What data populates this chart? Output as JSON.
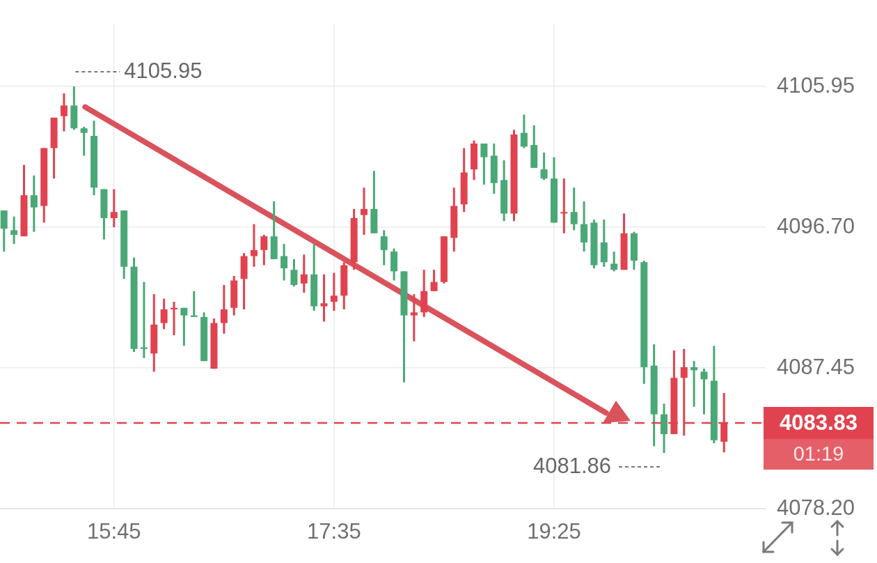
{
  "chart_data": {
    "type": "candlestick",
    "x": [
      14.8333,
      14.9167,
      15,
      15.0833,
      15.1667,
      15.25,
      15.3333,
      15.4167,
      15.5,
      15.5833,
      15.6667,
      15.75,
      15.8333,
      15.9167,
      16,
      16.0833,
      16.1667,
      16.25,
      16.3333,
      16.4167,
      16.5,
      16.5833,
      16.6667,
      16.75,
      16.8333,
      16.9167,
      17,
      17.0833,
      17.1667,
      17.25,
      17.3333,
      17.4167,
      17.5,
      17.5833,
      17.6667,
      17.75,
      17.8333,
      17.9167,
      18,
      18.0833,
      18.1667,
      18.25,
      18.3333,
      18.4167,
      18.5,
      18.5833,
      18.6667,
      18.75,
      18.8333,
      18.9167,
      19,
      19.0833,
      19.1667,
      19.25,
      19.3333,
      19.4167,
      19.5,
      19.5833,
      19.6667,
      19.75,
      19.8333,
      19.9167,
      20,
      20.0833,
      20.1667,
      20.25,
      20.3333,
      20.4167,
      20.5,
      20.5833,
      20.6667,
      20.75,
      20.8333
    ],
    "ohlc": [
      [
        4097.8,
        4097.8,
        4095.1,
        4096.6
      ],
      [
        4096.5,
        4097.4,
        4095.6,
        4096.2
      ],
      [
        4096.1,
        4100.8,
        4096.1,
        4098.8
      ],
      [
        4098.8,
        4100.1,
        4096.4,
        4098.0
      ],
      [
        4098.1,
        4101.9,
        4097.0,
        4101.9
      ],
      [
        4101.9,
        4103.9,
        4099.9,
        4103.9
      ],
      [
        4104.0,
        4105.5,
        4103.0,
        4104.7
      ],
      [
        4104.7,
        4105.95,
        4103.1,
        4103.2
      ],
      [
        4103.2,
        4103.3,
        4101.4,
        4102.9
      ],
      [
        4102.7,
        4103.7,
        4098.8,
        4099.3
      ],
      [
        4099.2,
        4099.2,
        4095.9,
        4097.3
      ],
      [
        4097.3,
        4099.2,
        4096.7,
        4097.7
      ],
      [
        4097.8,
        4097.8,
        4093.3,
        4094.1
      ],
      [
        4094.1,
        4094.7,
        4088.5,
        4088.7
      ],
      [
        4088.8,
        4093.1,
        4088.1,
        4088.7
      ],
      [
        4088.4,
        4092.3,
        4087.2,
        4090.3
      ],
      [
        4090.4,
        4092.0,
        4090.0,
        4091.3
      ],
      [
        4091.3,
        4091.8,
        4089.6,
        4091.4
      ],
      [
        4091.4,
        4091.4,
        4088.9,
        4090.9
      ],
      [
        4090.9,
        4092.5,
        4090.8,
        4090.8
      ],
      [
        4090.8,
        4091.1,
        4087.9,
        4087.9
      ],
      [
        4087.4,
        4090.7,
        4087.4,
        4090.4
      ],
      [
        4090.4,
        4092.9,
        4089.7,
        4091.3
      ],
      [
        4091.4,
        4093.5,
        4090.9,
        4093.2
      ],
      [
        4093.3,
        4095.0,
        4091.3,
        4094.8
      ],
      [
        4094.8,
        4096.9,
        4094.1,
        4095.2
      ],
      [
        4095.2,
        4096.2,
        4094.2,
        4096.1
      ],
      [
        4096.1,
        4098.4,
        4094.6,
        4094.6
      ],
      [
        4094.8,
        4095.6,
        4093.2,
        4094.0
      ],
      [
        4093.9,
        4094.6,
        4092.8,
        4092.9
      ],
      [
        4093.0,
        4094.9,
        4092.4,
        4093.6
      ],
      [
        4093.6,
        4095.6,
        4091.2,
        4091.5
      ],
      [
        4091.5,
        4093.6,
        4090.5,
        4091.7
      ],
      [
        4091.8,
        4093.7,
        4091.2,
        4092.2
      ],
      [
        4092.2,
        4094.4,
        4091.3,
        4094.2
      ],
      [
        4094.4,
        4097.9,
        4093.9,
        4097.3
      ],
      [
        4097.5,
        4099.3,
        4096.2,
        4097.9
      ],
      [
        4097.9,
        4100.4,
        4096.3,
        4096.3
      ],
      [
        4096.1,
        4096.5,
        4094.2,
        4095.2
      ],
      [
        4095.1,
        4095.3,
        4093.2,
        4093.8
      ],
      [
        4093.8,
        4093.8,
        4086.5,
        4090.9
      ],
      [
        4090.9,
        4092.3,
        4089.2,
        4091.1
      ],
      [
        4091.1,
        4093.9,
        4090.8,
        4092.5
      ],
      [
        4092.5,
        4093.9,
        4092.5,
        4093.1
      ],
      [
        4093.1,
        4096.1,
        4093.0,
        4096.1
      ],
      [
        4096.0,
        4099.3,
        4095.1,
        4098.1
      ],
      [
        4098.2,
        4101.9,
        4097.7,
        4100.3
      ],
      [
        4100.5,
        4102.4,
        4099.8,
        4102.2
      ],
      [
        4102.2,
        4102.2,
        4099.5,
        4101.3
      ],
      [
        4101.4,
        4102.2,
        4098.9,
        4099.6
      ],
      [
        4099.8,
        4101.1,
        4097.1,
        4097.6
      ],
      [
        4097.6,
        4103.1,
        4097.1,
        4102.8
      ],
      [
        4102.9,
        4104.1,
        4101.9,
        4102.0
      ],
      [
        4102.1,
        4103.4,
        4100.6,
        4100.6
      ],
      [
        4100.5,
        4101.6,
        4099.8,
        4099.9
      ],
      [
        4099.9,
        4101.3,
        4097.0,
        4097.0
      ],
      [
        4097.6,
        4099.9,
        4096.3,
        4097.7
      ],
      [
        4097.7,
        4099.3,
        4096.5,
        4096.9
      ],
      [
        4096.9,
        4098.4,
        4095.1,
        4095.7
      ],
      [
        4097.0,
        4097.2,
        4094.0,
        4094.2
      ],
      [
        4095.7,
        4097.2,
        4094.1,
        4094.4
      ],
      [
        4094.3,
        4095.1,
        4093.8,
        4093.9
      ],
      [
        4093.9,
        4097.6,
        4093.9,
        4096.3
      ],
      [
        4096.3,
        4096.4,
        4093.9,
        4094.5
      ],
      [
        4094.4,
        4094.5,
        4086.4,
        4087.5
      ],
      [
        4087.6,
        4089.0,
        4082.3,
        4084.4
      ],
      [
        4084.4,
        4085.1,
        4081.86,
        4083.1
      ],
      [
        4083.1,
        4088.6,
        4083.1,
        4086.8
      ],
      [
        4086.8,
        4088.7,
        4083.0,
        4087.5
      ],
      [
        4087.5,
        4087.9,
        4084.9,
        4087.3
      ],
      [
        4087.2,
        4087.4,
        4084.4,
        4086.7
      ],
      [
        4086.6,
        4088.9,
        4082.5,
        4082.7
      ],
      [
        4082.6,
        4085.8,
        4081.9,
        4083.83
      ]
    ],
    "colors": [
      "#4aa876",
      "#4aa876",
      "#e0434f",
      "#4aa876",
      "#e0434f",
      "#e0434f",
      "#e0434f",
      "#4aa876",
      "#4aa876",
      "#4aa876",
      "#4aa876",
      "#e0434f",
      "#4aa876",
      "#4aa876",
      "#4aa876",
      "#e0434f",
      "#e0434f",
      "#e0434f",
      "#4aa876",
      "#4aa876",
      "#4aa876",
      "#e0434f",
      "#e0434f",
      "#e0434f",
      "#e0434f",
      "#e0434f",
      "#e0434f",
      "#4aa876",
      "#4aa876",
      "#4aa876",
      "#e0434f",
      "#4aa876",
      "#e0434f",
      "#e0434f",
      "#e0434f",
      "#e0434f",
      "#e0434f",
      "#4aa876",
      "#4aa876",
      "#4aa876",
      "#4aa876",
      "#e0434f",
      "#e0434f",
      "#e0434f",
      "#e0434f",
      "#e0434f",
      "#e0434f",
      "#e0434f",
      "#4aa876",
      "#4aa876",
      "#4aa876",
      "#e0434f",
      "#4aa876",
      "#4aa876",
      "#4aa876",
      "#4aa876",
      "#e0434f",
      "#4aa876",
      "#4aa876",
      "#4aa876",
      "#4aa876",
      "#4aa876",
      "#e0434f",
      "#4aa876",
      "#4aa876",
      "#4aa876",
      "#4aa876",
      "#e0434f",
      "#e0434f",
      "#4aa876",
      "#4aa876",
      "#4aa876",
      "#e0434f"
    ],
    "xlim": [
      14.8,
      21.18
    ],
    "xticks": [
      {
        "value": 15.75,
        "label": "15:45"
      },
      {
        "value": 17.5833,
        "label": "17:35"
      },
      {
        "value": 19.4167,
        "label": "19:25"
      }
    ],
    "ylim": [
      4078.2,
      4110.05
    ],
    "yticks": [
      {
        "value": 4078.2,
        "label": "4078.20"
      },
      4087.45,
      {
        "value": 4096.7,
        "label": "4096.70"
      },
      4105.95
    ],
    "series": [
      {
        "type": "line",
        "color": "#d9535c",
        "x": [
          15.51,
          19.85
        ],
        "values": [
          4104.6,
          4084.5
        ]
      }
    ],
    "grid": true,
    "ref_lines": [
      {
        "axis": "y",
        "value": 4083.83,
        "label": "4083.83",
        "color": "#e0434f",
        "line_style": "dashed"
      }
    ],
    "annotations": [
      {
        "text": "4105.95",
        "x": 15.4167,
        "y": 4105.95
      },
      {
        "text": "4081.86",
        "x": 20.3333,
        "y": 4081.86
      },
      "01:19"
    ]
  }
}
